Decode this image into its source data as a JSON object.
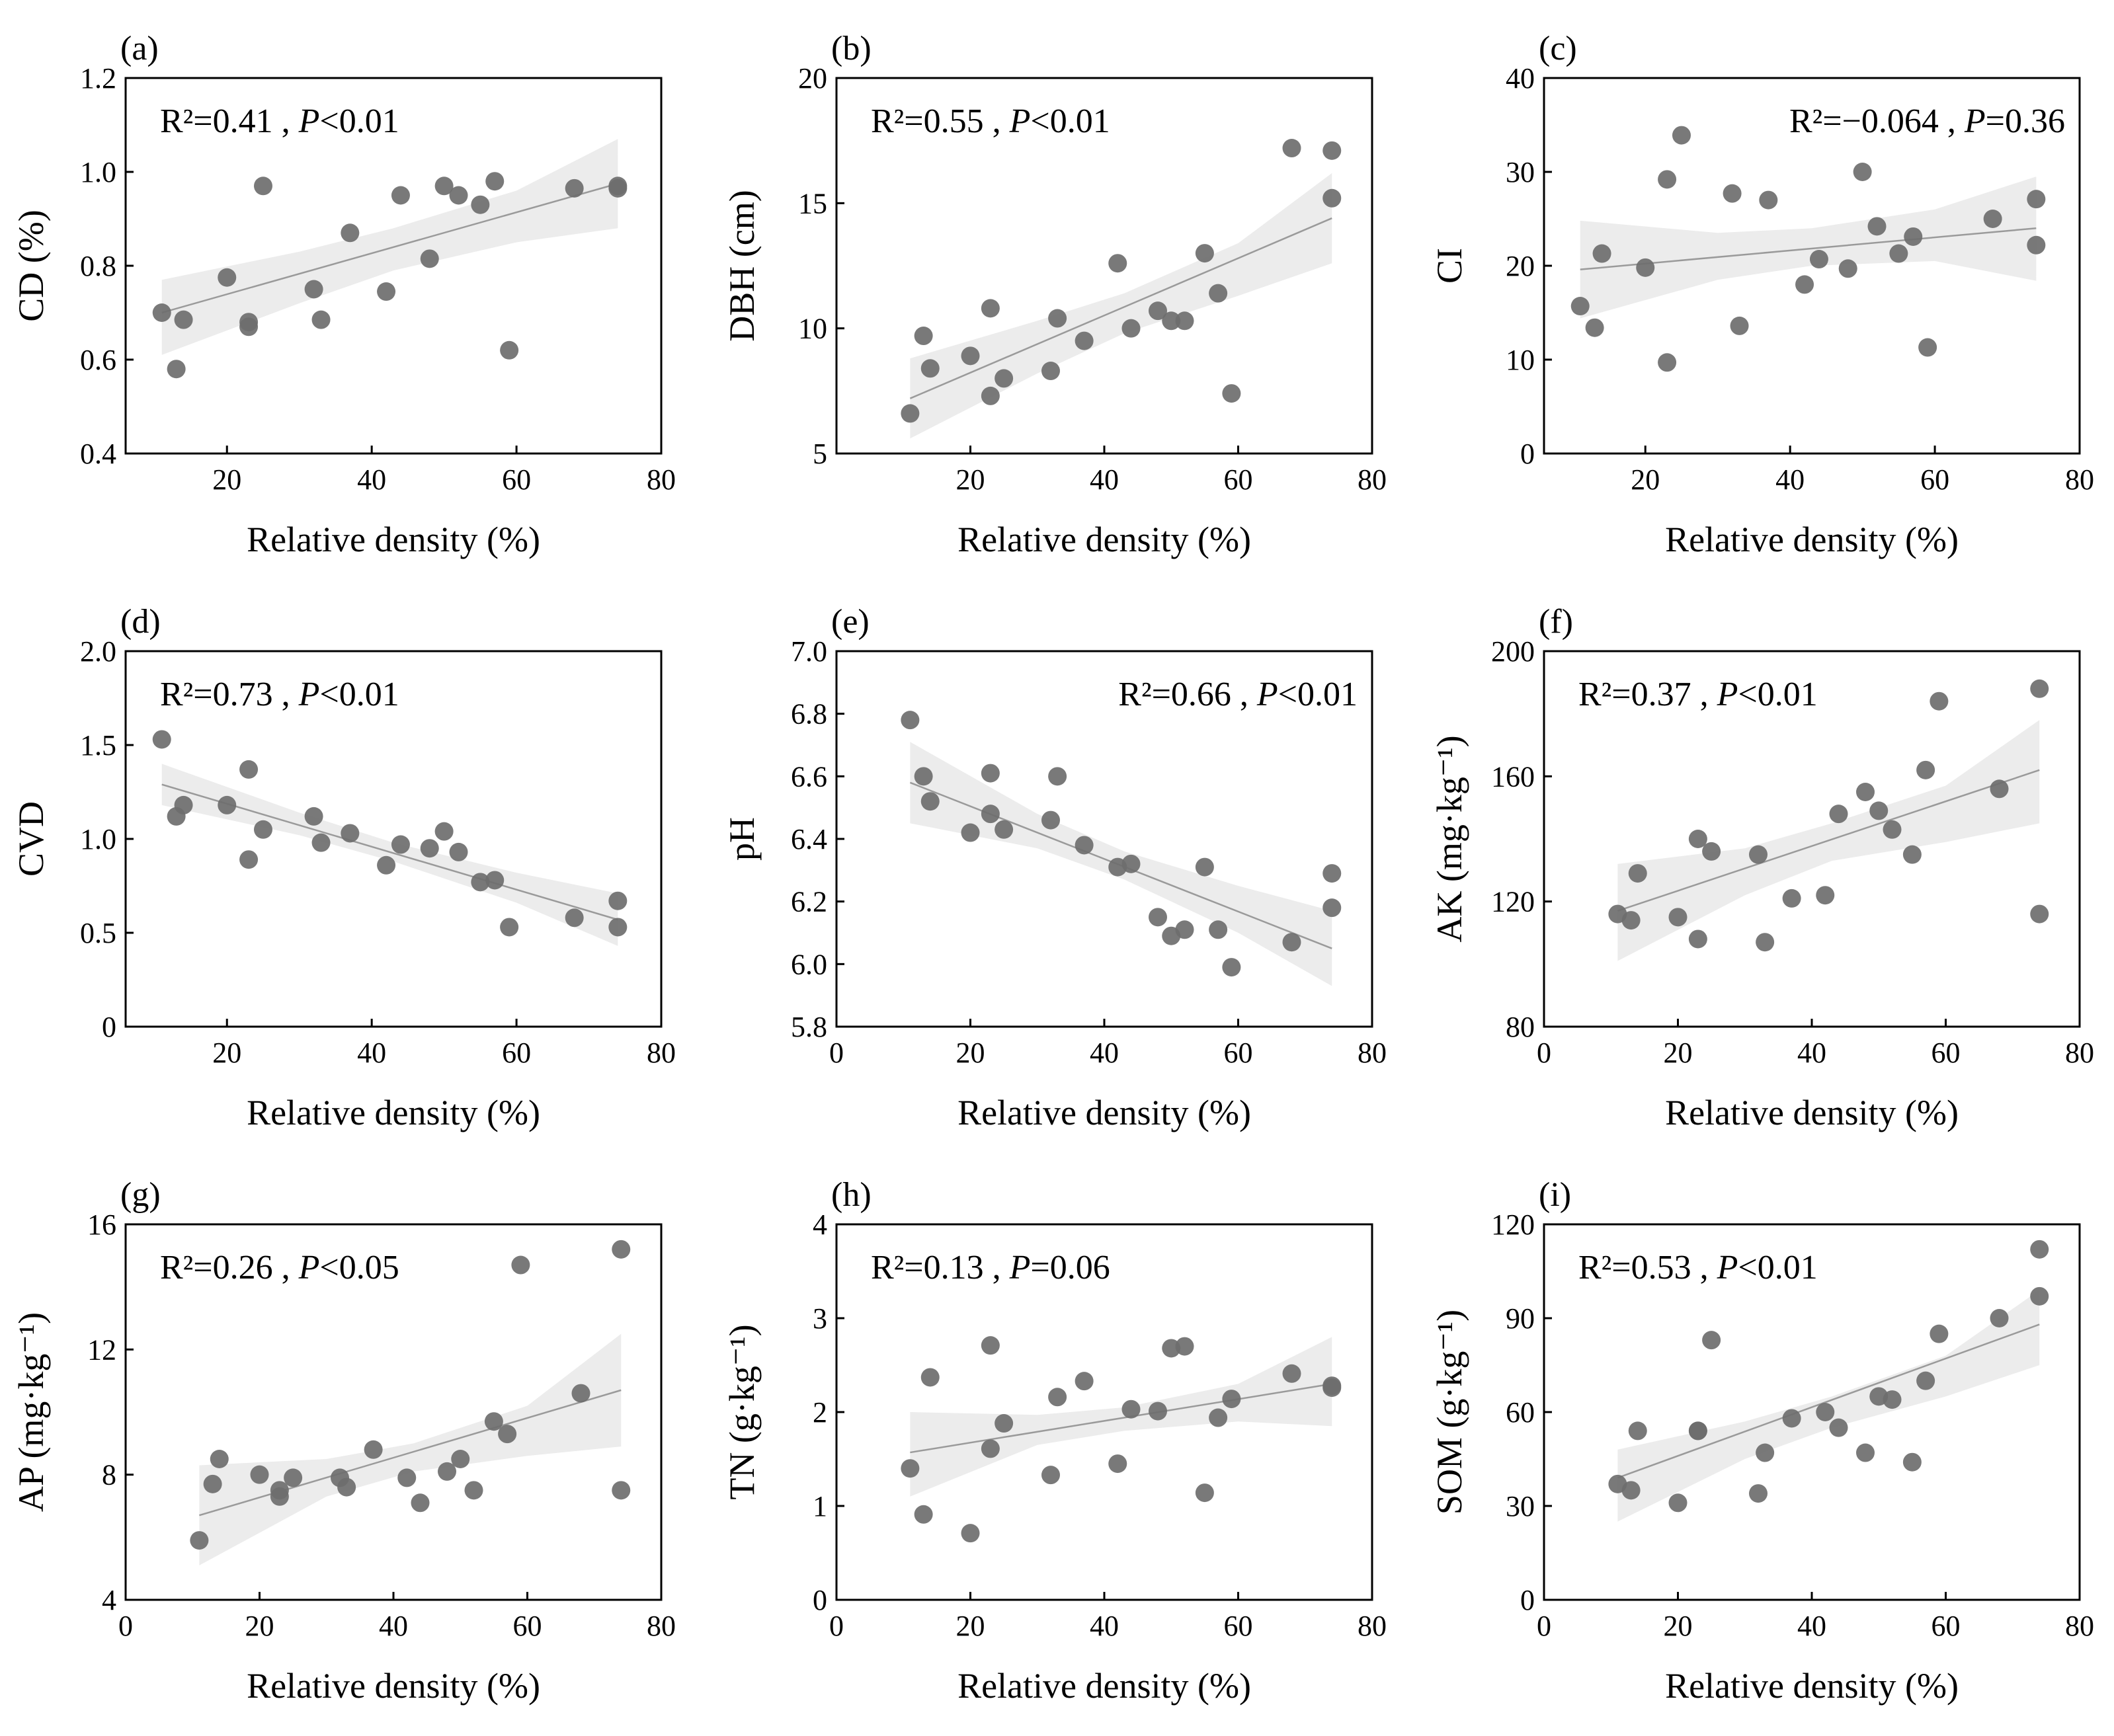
{
  "chart_data": [
    {
      "id": "a",
      "type": "scatter",
      "panel_label": "(a)",
      "xlabel": "Relative density (%)",
      "ylabel": "CD (%)",
      "xlim": [
        6,
        80
      ],
      "ylim": [
        0.4,
        1.2
      ],
      "xticks": [
        20,
        40,
        60,
        80
      ],
      "yticks": [
        0.4,
        0.6,
        0.8,
        1.0,
        1.2
      ],
      "ytick_labels": [
        "0.4",
        "0.6",
        "0.8",
        "1.0",
        "1.2"
      ],
      "stat": {
        "r2": "R²=0.41 , ",
        "p_symbol": "P",
        "p_text": "<0.01"
      },
      "stat_position": "top-left",
      "fit": {
        "x": [
          11,
          74
        ],
        "y": [
          0.7,
          0.975
        ]
      },
      "band": {
        "x": [
          11,
          30,
          43,
          60,
          74
        ],
        "upper": [
          0.77,
          0.83,
          0.88,
          0.96,
          1.07
        ],
        "lower": [
          0.61,
          0.72,
          0.79,
          0.85,
          0.88
        ]
      },
      "points": {
        "x": [
          11,
          13,
          14,
          20,
          23,
          23,
          25,
          32,
          33,
          37,
          42,
          44,
          48,
          50,
          52,
          55,
          57,
          59,
          68,
          74,
          74
        ],
        "y": [
          0.7,
          0.58,
          0.685,
          0.775,
          0.68,
          0.67,
          0.97,
          0.75,
          0.685,
          0.87,
          0.745,
          0.95,
          0.815,
          0.97,
          0.95,
          0.93,
          0.98,
          0.62,
          0.965,
          0.97,
          0.965
        ]
      }
    },
    {
      "id": "b",
      "type": "scatter",
      "panel_label": "(b)",
      "xlabel": "Relative density (%)",
      "ylabel": "DBH (cm)",
      "xlim": [
        0,
        80
      ],
      "ylim": [
        5,
        20
      ],
      "xticks": [
        20,
        40,
        60,
        80
      ],
      "yticks": [
        5,
        10,
        15,
        20
      ],
      "ytick_labels": [
        "5",
        "10",
        "15",
        "20"
      ],
      "stat": {
        "r2": "R²=0.55 , ",
        "p_symbol": "P",
        "p_text": "<0.01"
      },
      "stat_position": "top-left",
      "fit": {
        "x": [
          11,
          74
        ],
        "y": [
          7.2,
          14.4
        ]
      },
      "band": {
        "x": [
          11,
          30,
          43,
          60,
          74
        ],
        "upper": [
          8.8,
          10.3,
          11.4,
          13.4,
          16.2
        ],
        "lower": [
          5.6,
          8.2,
          9.8,
          11.3,
          12.6
        ]
      },
      "points": {
        "x": [
          11,
          13,
          14,
          20,
          23,
          23,
          25,
          32,
          33,
          37,
          42,
          44,
          48,
          50,
          52,
          55,
          57,
          59,
          68,
          74,
          74
        ],
        "y": [
          6.6,
          9.7,
          8.4,
          8.9,
          10.8,
          7.3,
          8.0,
          8.3,
          10.4,
          9.5,
          12.6,
          10.0,
          10.7,
          10.3,
          10.3,
          13.0,
          11.4,
          7.4,
          17.2,
          17.1,
          15.2
        ]
      }
    },
    {
      "id": "c",
      "type": "scatter",
      "panel_label": "(c)",
      "xlabel": "Relative density (%)",
      "ylabel": "CI",
      "xlim": [
        6,
        80
      ],
      "ylim": [
        0,
        40
      ],
      "xticks": [
        20,
        40,
        60,
        80
      ],
      "yticks": [
        0,
        10,
        20,
        30,
        40
      ],
      "ytick_labels": [
        "0",
        "10",
        "20",
        "30",
        "40"
      ],
      "stat": {
        "r2": "R²=−0.064 , ",
        "p_symbol": "P",
        "p_text": "=0.36"
      },
      "stat_position": "top-right",
      "fit": {
        "x": [
          11,
          74
        ],
        "y": [
          19.6,
          24.0
        ]
      },
      "band": {
        "x": [
          11,
          30,
          43,
          60,
          74
        ],
        "upper": [
          24.8,
          23.5,
          24.0,
          26.0,
          29.5
        ],
        "lower": [
          14.4,
          18.5,
          20.0,
          20.5,
          18.4
        ]
      },
      "points": {
        "x": [
          11,
          13,
          14,
          20,
          23,
          23,
          25,
          32,
          33,
          37,
          42,
          44,
          48,
          50,
          52,
          55,
          57,
          59,
          68,
          74,
          74
        ],
        "y": [
          15.7,
          13.4,
          21.3,
          19.8,
          29.2,
          9.7,
          33.9,
          27.7,
          13.6,
          27.0,
          18.0,
          20.7,
          19.7,
          30.0,
          24.2,
          21.3,
          23.1,
          11.3,
          25.0,
          27.1,
          22.2
        ]
      }
    },
    {
      "id": "d",
      "type": "scatter",
      "panel_label": "(d)",
      "xlabel": "Relative density (%)",
      "ylabel": "CVD",
      "xlim": [
        6,
        80
      ],
      "ylim": [
        0,
        2.0
      ],
      "xticks": [
        20,
        40,
        60,
        80
      ],
      "yticks": [
        0,
        0.5,
        1.0,
        1.5,
        2.0
      ],
      "ytick_labels": [
        "0",
        "0.5",
        "1.0",
        "1.5",
        "2.0"
      ],
      "stat": {
        "r2": "R²=0.73 , ",
        "p_symbol": "P",
        "p_text": "<0.01"
      },
      "stat_position": "top-left",
      "fit": {
        "x": [
          11,
          74
        ],
        "y": [
          1.29,
          0.57
        ]
      },
      "band": {
        "x": [
          11,
          30,
          43,
          60,
          74
        ],
        "upper": [
          1.4,
          1.14,
          0.98,
          0.82,
          0.71
        ],
        "lower": [
          1.18,
          1.02,
          0.88,
          0.66,
          0.43
        ]
      },
      "points": {
        "x": [
          11,
          13,
          14,
          20,
          23,
          23,
          25,
          32,
          33,
          37,
          42,
          44,
          48,
          50,
          52,
          55,
          57,
          59,
          68,
          74,
          74
        ],
        "y": [
          1.53,
          1.12,
          1.18,
          1.18,
          1.37,
          0.89,
          1.05,
          1.12,
          0.98,
          1.03,
          0.86,
          0.97,
          0.95,
          1.04,
          0.93,
          0.77,
          0.78,
          0.53,
          0.58,
          0.67,
          0.53
        ]
      }
    },
    {
      "id": "e",
      "type": "scatter",
      "panel_label": "(e)",
      "xlabel": "Relative density (%)",
      "ylabel": "pH",
      "xlim": [
        0,
        80
      ],
      "ylim": [
        5.8,
        7.0
      ],
      "xticks": [
        0,
        20,
        40,
        60,
        80
      ],
      "yticks": [
        5.8,
        6.0,
        6.2,
        6.4,
        6.6,
        6.8,
        7.0
      ],
      "ytick_labels": [
        "5.8",
        "6.0",
        "6.2",
        "6.4",
        "6.6",
        "6.8",
        "7.0"
      ],
      "stat": {
        "r2": "R²=0.66 , ",
        "p_symbol": "P",
        "p_text": "<0.01"
      },
      "stat_position": "top-right",
      "fit": {
        "x": [
          11,
          74
        ],
        "y": [
          6.58,
          6.05
        ]
      },
      "band": {
        "x": [
          11,
          30,
          43,
          60,
          74
        ],
        "upper": [
          6.71,
          6.48,
          6.36,
          6.25,
          6.17
        ],
        "lower": [
          6.45,
          6.37,
          6.27,
          6.1,
          5.93
        ]
      },
      "points": {
        "x": [
          11,
          13,
          14,
          20,
          23,
          23,
          25,
          32,
          33,
          37,
          42,
          44,
          48,
          50,
          52,
          55,
          57,
          59,
          68,
          74,
          74
        ],
        "y": [
          6.78,
          6.6,
          6.52,
          6.42,
          6.61,
          6.48,
          6.43,
          6.46,
          6.6,
          6.38,
          6.31,
          6.32,
          6.15,
          6.09,
          6.11,
          6.31,
          6.11,
          5.99,
          6.07,
          6.29,
          6.18
        ]
      }
    },
    {
      "id": "f",
      "type": "scatter",
      "panel_label": "(f)",
      "xlabel": "Relative density (%)",
      "ylabel": "AK (mg·kg⁻¹)",
      "xlim": [
        0,
        80
      ],
      "ylim": [
        80,
        200
      ],
      "xticks": [
        0,
        20,
        40,
        60,
        80
      ],
      "yticks": [
        80,
        120,
        160,
        200
      ],
      "ytick_labels": [
        "80",
        "120",
        "160",
        "200"
      ],
      "stat": {
        "r2": "R²=0.37 , ",
        "p_symbol": "P",
        "p_text": "<0.01"
      },
      "stat_position": "top-left",
      "fit": {
        "x": [
          11,
          74
        ],
        "y": [
          117,
          162
        ]
      },
      "band": {
        "x": [
          11,
          30,
          43,
          60,
          74
        ],
        "upper": [
          132,
          137,
          145,
          157,
          178
        ],
        "lower": [
          101,
          122,
          133,
          139,
          145
        ]
      },
      "points": {
        "x": [
          11,
          13,
          14,
          20,
          23,
          23,
          25,
          32,
          33,
          37,
          42,
          44,
          48,
          50,
          52,
          55,
          57,
          59,
          68,
          74,
          74
        ],
        "y": [
          116,
          114,
          129,
          115,
          140,
          108,
          136,
          135,
          107,
          121,
          122,
          148,
          155,
          149,
          143,
          135,
          162,
          184,
          156,
          188,
          116
        ]
      }
    },
    {
      "id": "g",
      "type": "scatter",
      "panel_label": "(g)",
      "xlabel": "Relative density (%)",
      "ylabel": "AP (mg·kg⁻¹)",
      "xlim": [
        0,
        80
      ],
      "ylim": [
        4,
        16
      ],
      "xticks": [
        0,
        20,
        40,
        60,
        80
      ],
      "yticks": [
        4,
        8,
        12,
        16
      ],
      "ytick_labels": [
        "4",
        "8",
        "12",
        "16"
      ],
      "stat": {
        "r2": "R²=0.26 , ",
        "p_symbol": "P",
        "p_text": "<0.05"
      },
      "stat_position": "top-left",
      "fit": {
        "x": [
          11,
          74
        ],
        "y": [
          6.7,
          10.7
        ]
      },
      "band": {
        "x": [
          11,
          30,
          43,
          60,
          74
        ],
        "upper": [
          8.3,
          8.5,
          9.0,
          10.2,
          12.5
        ],
        "lower": [
          5.1,
          7.3,
          8.1,
          8.6,
          8.9
        ]
      },
      "points": {
        "x": [
          11,
          13,
          14,
          20,
          23,
          23,
          25,
          32,
          33,
          37,
          42,
          44,
          48,
          50,
          52,
          55,
          57,
          59,
          68,
          74,
          74
        ],
        "y": [
          5.9,
          7.7,
          8.5,
          8.0,
          7.5,
          7.3,
          7.9,
          7.9,
          7.6,
          8.8,
          7.9,
          7.1,
          8.1,
          8.5,
          7.5,
          9.7,
          9.3,
          14.7,
          10.6,
          15.2,
          7.5
        ]
      }
    },
    {
      "id": "h",
      "type": "scatter",
      "panel_label": "(h)",
      "xlabel": "Relative density (%)",
      "ylabel": "TN (g·kg⁻¹)",
      "xlim": [
        0,
        80
      ],
      "ylim": [
        0,
        4
      ],
      "xticks": [
        0,
        20,
        40,
        60,
        80
      ],
      "yticks": [
        0,
        1,
        2,
        3,
        4
      ],
      "ytick_labels": [
        "0",
        "1",
        "2",
        "3",
        "4"
      ],
      "stat": {
        "r2": "R²=0.13 , ",
        "p_symbol": "P",
        "p_text": "=0.06"
      },
      "stat_position": "top-left",
      "fit": {
        "x": [
          11,
          74
        ],
        "y": [
          1.57,
          2.3
        ]
      },
      "band": {
        "x": [
          11,
          30,
          43,
          60,
          74
        ],
        "upper": [
          2.0,
          1.97,
          2.05,
          2.3,
          2.8
        ],
        "lower": [
          1.1,
          1.65,
          1.8,
          1.9,
          1.85
        ]
      },
      "points": {
        "x": [
          11,
          13,
          14,
          20,
          23,
          23,
          25,
          32,
          33,
          37,
          42,
          44,
          48,
          50,
          52,
          55,
          57,
          59,
          68,
          74,
          74
        ],
        "y": [
          1.4,
          0.91,
          2.37,
          0.71,
          2.71,
          1.61,
          1.88,
          1.33,
          2.16,
          2.33,
          1.45,
          2.03,
          2.01,
          2.68,
          2.7,
          1.14,
          1.94,
          2.14,
          2.41,
          2.28,
          2.26
        ]
      }
    },
    {
      "id": "i",
      "type": "scatter",
      "panel_label": "(i)",
      "xlabel": "Relative density (%)",
      "ylabel": "SOM (g·kg⁻¹)",
      "xlim": [
        0,
        80
      ],
      "ylim": [
        0,
        120
      ],
      "xticks": [
        0,
        20,
        40,
        60,
        80
      ],
      "yticks": [
        0,
        30,
        60,
        90,
        120
      ],
      "ytick_labels": [
        "0",
        "30",
        "60",
        "90",
        "120"
      ],
      "stat": {
        "r2": "R²=0.53 , ",
        "p_symbol": "P",
        "p_text": "<0.01"
      },
      "stat_position": "top-left",
      "fit": {
        "x": [
          11,
          74
        ],
        "y": [
          39,
          88
        ]
      },
      "band": {
        "x": [
          11,
          30,
          43,
          60,
          74
        ],
        "upper": [
          48,
          57,
          65,
          78,
          99
        ],
        "lower": [
          25,
          45,
          55,
          65,
          75
        ]
      },
      "points": {
        "x": [
          11,
          13,
          14,
          20,
          23,
          23,
          25,
          32,
          33,
          37,
          42,
          44,
          48,
          50,
          52,
          55,
          57,
          59,
          68,
          74,
          74
        ],
        "y": [
          37,
          35,
          54,
          31,
          54,
          54,
          83,
          34,
          47,
          58,
          60,
          55,
          47,
          65,
          64,
          44,
          70,
          85,
          90,
          112,
          97
        ]
      }
    }
  ]
}
